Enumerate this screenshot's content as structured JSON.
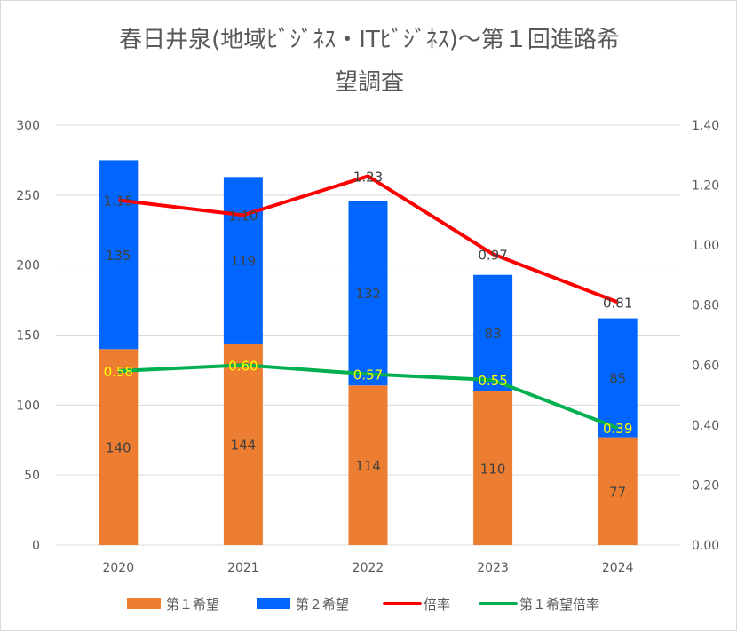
{
  "chart_data": {
    "type": "bar",
    "title_line1": "春日井泉(地域ﾋﾞｼﾞﾈｽ・ITﾋﾞｼﾞﾈｽ)～第１回進路希",
    "title_line2": "望調査",
    "categories": [
      "2020",
      "2021",
      "2022",
      "2023",
      "2024"
    ],
    "left_axis": {
      "min": 0,
      "max": 300,
      "step": 50,
      "ticks": [
        "0",
        "50",
        "100",
        "150",
        "200",
        "250",
        "300"
      ]
    },
    "right_axis": {
      "min": 0,
      "max": 1.4,
      "step": 0.2,
      "ticks": [
        "0.00",
        "0.20",
        "0.40",
        "0.60",
        "0.80",
        "1.00",
        "1.20",
        "1.40"
      ]
    },
    "series": [
      {
        "name": "第１希望",
        "kind": "stacked-bar",
        "axis": "left",
        "color": "#ED7D31",
        "values": [
          140,
          144,
          114,
          110,
          77
        ],
        "labels": [
          "140",
          "144",
          "114",
          "110",
          "77"
        ]
      },
      {
        "name": "第２希望",
        "kind": "stacked-bar",
        "axis": "left",
        "color": "#0066FF",
        "values": [
          135,
          119,
          132,
          83,
          85
        ],
        "labels": [
          "135",
          "119",
          "132",
          "83",
          "85"
        ]
      },
      {
        "name": "倍率",
        "kind": "line",
        "axis": "right",
        "color": "#FF0000",
        "values": [
          1.15,
          1.1,
          1.23,
          0.97,
          0.81
        ],
        "labels": [
          "1.15",
          "1.10",
          "1.23",
          "0.97",
          "0.81"
        ],
        "label_color": "#404040"
      },
      {
        "name": "第１希望倍率",
        "kind": "line",
        "axis": "right",
        "color": "#00B050",
        "values": [
          0.58,
          0.6,
          0.57,
          0.55,
          0.39
        ],
        "labels": [
          "0.58",
          "0.60",
          "0.57",
          "0.55",
          "0.39"
        ],
        "label_color": "#FFFF00"
      }
    ],
    "grid": true,
    "legend": "bottom"
  }
}
